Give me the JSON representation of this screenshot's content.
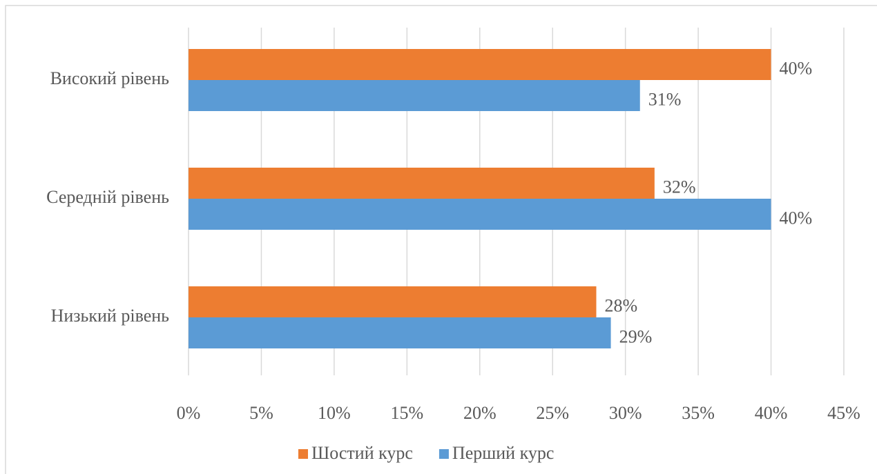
{
  "chart_data": {
    "type": "barh",
    "categories": [
      "Високий рівень",
      "Середній рівень",
      "Низький рівень"
    ],
    "series": [
      {
        "name": "Шостий курс",
        "color": "#ed7d31",
        "values": [
          40,
          32,
          28
        ],
        "value_labels": [
          "40%",
          "32%",
          "28%"
        ]
      },
      {
        "name": "Перший курс",
        "color": "#5b9bd5",
        "values": [
          31,
          40,
          29
        ],
        "value_labels": [
          "31%",
          "40%",
          "29%"
        ]
      }
    ],
    "xlim": [
      0,
      45
    ],
    "xticks": [
      {
        "value": 0,
        "label": "0%"
      },
      {
        "value": 5,
        "label": "5%"
      },
      {
        "value": 10,
        "label": "10%"
      },
      {
        "value": 15,
        "label": "15%"
      },
      {
        "value": 20,
        "label": "20%"
      },
      {
        "value": 25,
        "label": "25%"
      },
      {
        "value": 30,
        "label": "30%"
      },
      {
        "value": 35,
        "label": "35%"
      },
      {
        "value": 40,
        "label": "40%"
      },
      {
        "value": 45,
        "label": "45%"
      }
    ],
    "grid": true,
    "legend": "bottom"
  }
}
